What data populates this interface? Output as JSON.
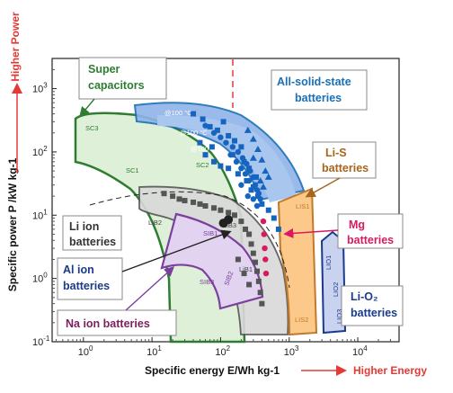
{
  "chart_data": {
    "type": "scatter",
    "title": "",
    "xlabel": "Specific energy E/Wh kg-1",
    "ylabel": "Specific power P /kW kg-1",
    "xscale": "log",
    "yscale": "log",
    "xlim": [
      0.35,
      40000
    ],
    "ylim": [
      0.1,
      3000
    ],
    "x_ticks": [
      "10^0",
      "10^1",
      "10^2",
      "10^3",
      "10^4"
    ],
    "y_ticks": [
      "10^-1",
      "10^0",
      "10^1",
      "10^2",
      "10^3"
    ],
    "grid": false,
    "higher_power_label": "Higher Power",
    "higher_energy_label": "Higher Energy",
    "zones": [
      {
        "name": "SC3",
        "color": "#2e7d32"
      },
      {
        "name": "SC2",
        "color": "#2e7d32"
      },
      {
        "name": "SC1",
        "color": "#2e7d32"
      },
      {
        "name": "LiB2",
        "color": "#555555"
      },
      {
        "name": "LiB3",
        "color": "#555555"
      },
      {
        "name": "LiB1",
        "color": "#555555"
      },
      {
        "name": "SIB1",
        "color": "#7b3f9e"
      },
      {
        "name": "SIB2",
        "color": "#7b3f9e"
      },
      {
        "name": "SIB3",
        "color": "#7b3f9e"
      },
      {
        "name": "LIS1",
        "color": "#c07a2a"
      },
      {
        "name": "LIS2",
        "color": "#c07a2a"
      },
      {
        "name": "LIO1",
        "color": "#1a3a8a"
      },
      {
        "name": "LIO2",
        "color": "#1a3a8a"
      },
      {
        "name": "LIO3",
        "color": "#1a3a8a"
      }
    ],
    "annotations": [
      "@100 °C",
      "@100 °C",
      "@100 °C"
    ],
    "callouts": [
      {
        "lines": [
          "Super",
          "capacitors"
        ],
        "color": "#2e7d32"
      },
      {
        "lines": [
          "All-solid-state",
          "batteries"
        ],
        "color": "#1a6fb5"
      },
      {
        "lines": [
          "Li-S",
          "batteries"
        ],
        "color": "#a5651a"
      },
      {
        "lines": [
          "Mg",
          "batteries"
        ],
        "color": "#d81b60"
      },
      {
        "lines": [
          "Li ion",
          "batteries"
        ],
        "color": "#333333"
      },
      {
        "lines": [
          "Al ion",
          "batteries"
        ],
        "color": "#1a3a8a"
      },
      {
        "lines": [
          "Na  ion  batteries"
        ],
        "color": "#7b1f5e"
      },
      {
        "lines": [
          "Li-O₂",
          "batteries"
        ],
        "color": "#1a3a8a"
      }
    ],
    "series": [
      {
        "name": "",
        "marker": "square",
        "color": "#1565c0",
        "points": [
          [
            40,
            400
          ],
          [
            55,
            330
          ],
          [
            70,
            250
          ],
          [
            90,
            220
          ],
          [
            110,
            300
          ],
          [
            130,
            180
          ],
          [
            160,
            150
          ],
          [
            200,
            120
          ],
          [
            60,
            90
          ],
          [
            80,
            70
          ],
          [
            100,
            60
          ],
          [
            130,
            55
          ],
          [
            180,
            45
          ],
          [
            240,
            35
          ],
          [
            300,
            28
          ],
          [
            50,
            140
          ],
          [
            75,
            120
          ],
          [
            150,
            90
          ],
          [
            220,
            70
          ],
          [
            280,
            25
          ],
          [
            350,
            20
          ],
          [
            400,
            15
          ],
          [
            600,
            9
          ],
          [
            700,
            6
          ],
          [
            500,
            12
          ],
          [
            330,
            40
          ],
          [
            260,
            55
          ]
        ]
      },
      {
        "name": "",
        "marker": "circle",
        "color": "#1565c0",
        "points": [
          [
            60,
            260
          ],
          [
            80,
            200
          ],
          [
            100,
            170
          ],
          [
            120,
            140
          ],
          [
            150,
            120
          ],
          [
            180,
            100
          ],
          [
            210,
            80
          ],
          [
            240,
            65
          ],
          [
            270,
            50
          ],
          [
            300,
            40
          ],
          [
            320,
            30
          ],
          [
            340,
            25
          ],
          [
            360,
            22
          ],
          [
            380,
            18
          ],
          [
            200,
            55
          ],
          [
            230,
            45
          ],
          [
            170,
            70
          ],
          [
            140,
            90
          ],
          [
            260,
            35
          ],
          [
            300,
            18
          ],
          [
            340,
            14
          ],
          [
            200,
            30
          ],
          [
            250,
            20
          ]
        ]
      },
      {
        "name": "",
        "marker": "triangle",
        "color": "#1565c0",
        "points": [
          [
            250,
            220
          ],
          [
            300,
            160
          ],
          [
            350,
            110
          ],
          [
            400,
            75
          ],
          [
            450,
            50
          ],
          [
            380,
            35
          ],
          [
            420,
            28
          ],
          [
            300,
            80
          ],
          [
            500,
            40
          ]
        ]
      },
      {
        "name": "",
        "marker": "square",
        "color": "#555555",
        "points": [
          [
            15,
            22
          ],
          [
            20,
            20
          ],
          [
            25,
            18
          ],
          [
            30,
            17
          ],
          [
            40,
            16
          ],
          [
            50,
            15
          ],
          [
            60,
            14
          ],
          [
            80,
            13
          ],
          [
            100,
            12
          ],
          [
            130,
            11
          ],
          [
            160,
            10
          ],
          [
            200,
            8
          ],
          [
            230,
            6
          ],
          [
            260,
            5
          ],
          [
            280,
            3.5
          ],
          [
            300,
            2.5
          ],
          [
            320,
            1.8
          ],
          [
            340,
            1.3
          ],
          [
            360,
            0.9
          ],
          [
            380,
            0.6
          ],
          [
            400,
            0.4
          ],
          [
            180,
            2
          ],
          [
            220,
            1.2
          ],
          [
            260,
            0.8
          ]
        ]
      },
      {
        "name": "",
        "marker": "circle",
        "color": "#222222",
        "points": [
          [
            110,
            7.5
          ],
          [
            130,
            8.5
          ]
        ]
      },
      {
        "name": "",
        "marker": "circle",
        "color": "#d81b60",
        "points": [
          [
            420,
            8
          ],
          [
            430,
            5
          ],
          [
            440,
            3
          ],
          [
            450,
            2
          ],
          [
            460,
            1.2
          ]
        ]
      }
    ]
  }
}
